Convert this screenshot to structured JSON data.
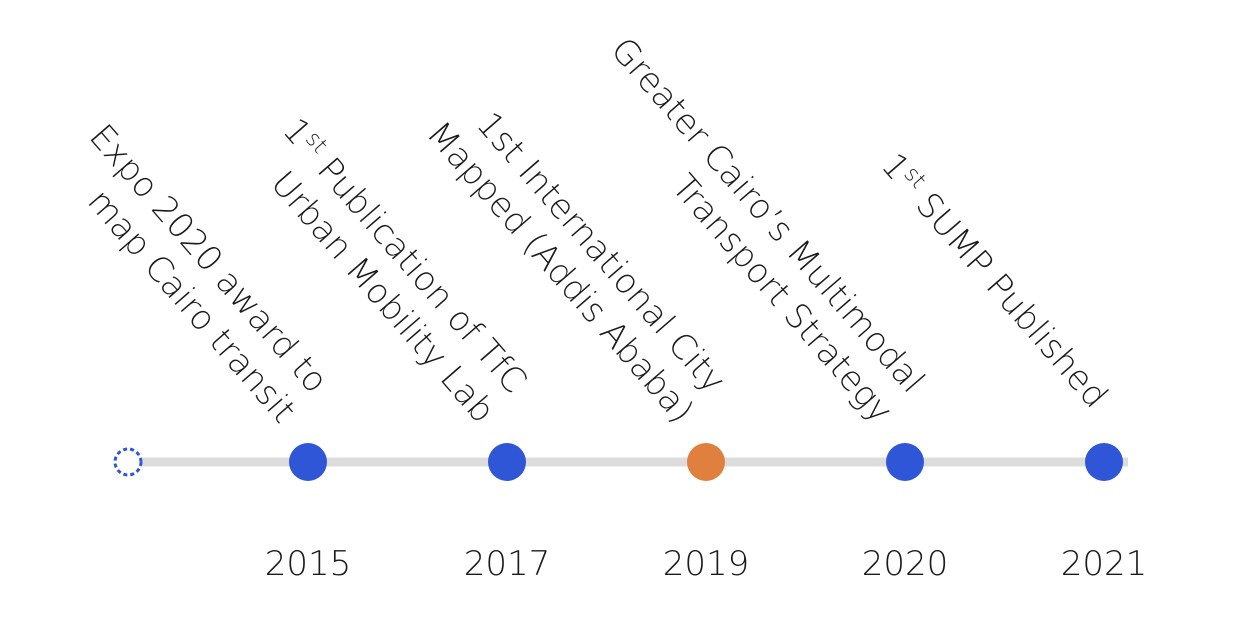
{
  "timeline": {
    "events": [
      {
        "year": "2015",
        "color": "#2f56d6",
        "lines": [
          "Expo 2020 award to",
          "map Cairo transit"
        ]
      },
      {
        "year": "2017",
        "color": "#2f56d6",
        "lines": [
          {
            "base": "1",
            "sup": "st",
            "rest": " Publication of TfC"
          },
          "Urban Mobility Lab"
        ]
      },
      {
        "year": "2019",
        "color": "#e0803f",
        "lines": [
          "1st International City",
          "Mapped (Addis Ababa)"
        ]
      },
      {
        "year": "2020",
        "color": "#2f56d6",
        "lines": [
          "Greater Cairo’s Multimodal",
          "Transport Strategy"
        ]
      },
      {
        "year": "2021",
        "color": "#2f56d6",
        "lines": [
          {
            "base": "1",
            "sup": "st",
            "rest": " SUMP Published"
          }
        ]
      }
    ]
  }
}
